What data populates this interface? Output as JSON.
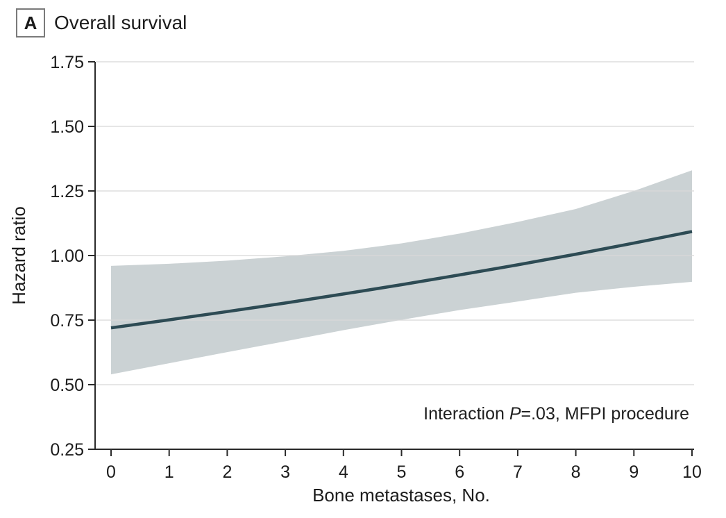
{
  "panel": {
    "label": "A",
    "title": "Overall survival"
  },
  "annotation": {
    "prefix": "Interaction ",
    "italic": "P",
    "suffix": "=.03, MFPI procedure"
  },
  "colors": {
    "ci_band": "#cbd2d4",
    "hr_line": "#2d4b54",
    "gridline": "#d9d9d9",
    "axis": "#2a2a2a",
    "text": "#1c1c1c"
  },
  "chart_data": {
    "type": "line",
    "title": "Overall survival",
    "xlabel": "Bone metastases, No.",
    "ylabel": "Hazard ratio",
    "x": [
      0,
      1,
      2,
      3,
      4,
      5,
      6,
      7,
      8,
      9,
      10
    ],
    "series": [
      {
        "name": "Hazard ratio",
        "values": [
          0.72,
          0.751,
          0.783,
          0.816,
          0.851,
          0.887,
          0.925,
          0.964,
          1.005,
          1.048,
          1.093
        ]
      },
      {
        "name": "95% CI upper",
        "values": [
          0.96,
          0.968,
          0.98,
          0.997,
          1.018,
          1.047,
          1.085,
          1.13,
          1.18,
          1.25,
          1.33
        ]
      },
      {
        "name": "95% CI lower",
        "values": [
          0.54,
          0.583,
          0.626,
          0.668,
          0.711,
          0.751,
          0.789,
          0.822,
          0.856,
          0.879,
          0.898
        ]
      }
    ],
    "xlim": [
      0,
      10
    ],
    "ylim": [
      0.25,
      1.75
    ],
    "xticks": [
      0,
      1,
      2,
      3,
      4,
      5,
      6,
      7,
      8,
      9,
      10
    ],
    "xtick_labels": [
      "0",
      "1",
      "2",
      "3",
      "4",
      "5",
      "6",
      "7",
      "8",
      "9",
      "10"
    ],
    "yticks": [
      0.25,
      0.5,
      0.75,
      1.0,
      1.25,
      1.5,
      1.75
    ],
    "ytick_labels": [
      "0.25",
      "0.50",
      "0.75",
      "1.00",
      "1.25",
      "1.50",
      "1.75"
    ],
    "grid": true,
    "legend": "none",
    "annotation_text": "Interaction P=.03, MFPI procedure"
  }
}
